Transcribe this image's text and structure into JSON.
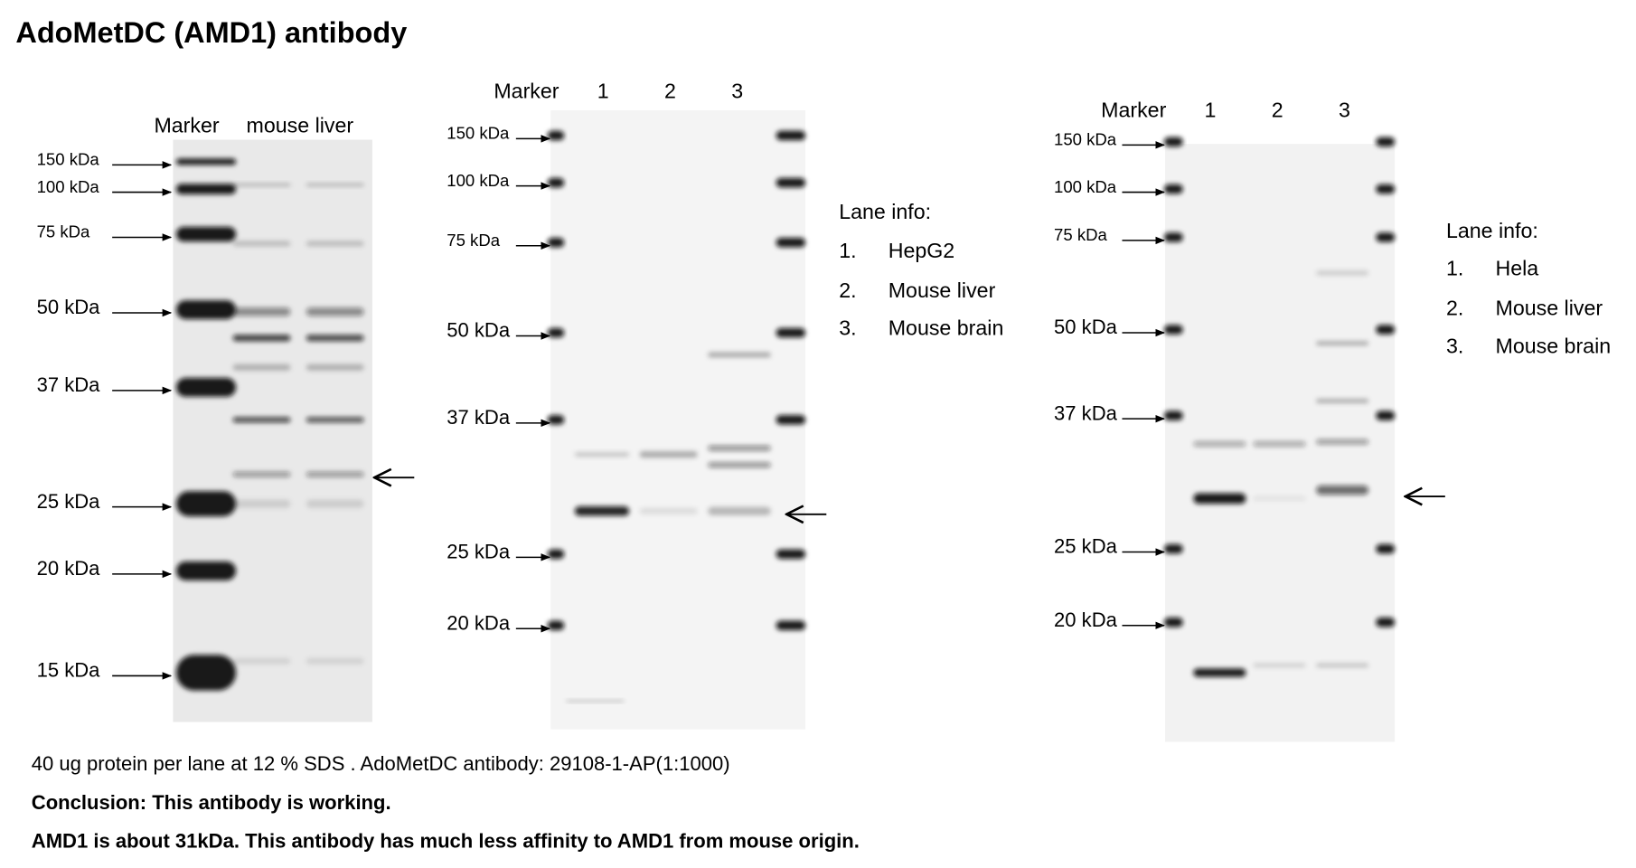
{
  "title": "AdoMetDC (AMD1) antibody",
  "panels": [
    {
      "lanes": [
        "Marker",
        "mouse liver"
      ],
      "markers": [
        "150 kDa",
        "100 kDa",
        "75 kDa",
        "50 kDa",
        "37 kDa",
        "25 kDa",
        "20 kDa",
        "15 kDa"
      ]
    },
    {
      "lanes": [
        "Marker",
        "1",
        "2",
        "3"
      ],
      "markers": [
        "150 kDa",
        "100 kDa",
        "75 kDa",
        "50 kDa",
        "37 kDa",
        "25 kDa",
        "20 kDa"
      ],
      "lane_info": {
        "heading": "Lane info:",
        "items": [
          {
            "number": "1.",
            "text": "HepG2"
          },
          {
            "number": "2.",
            "text": "Mouse liver"
          },
          {
            "number": "3.",
            "text": "Mouse brain"
          }
        ]
      }
    },
    {
      "lanes": [
        "Marker",
        "1",
        "2",
        "3"
      ],
      "markers": [
        "150 kDa",
        "100 kDa",
        "75 kDa",
        "50 kDa",
        "37 kDa",
        "25 kDa",
        "20 kDa"
      ],
      "lane_info": {
        "heading": "Lane info:",
        "items": [
          {
            "number": "1.",
            "text": "Hela"
          },
          {
            "number": "2.",
            "text": "Mouse liver"
          },
          {
            "number": "3.",
            "text": "Mouse brain"
          }
        ]
      }
    }
  ],
  "notes": [
    "40 ug protein per lane at 12 % SDS . AdoMetDC antibody: 29108-1-AP(1:1000)",
    "Conclusion: This antibody is working.",
    "AMD1 is about 31kDa. This antibody has much less affinity to AMD1 from mouse origin."
  ]
}
